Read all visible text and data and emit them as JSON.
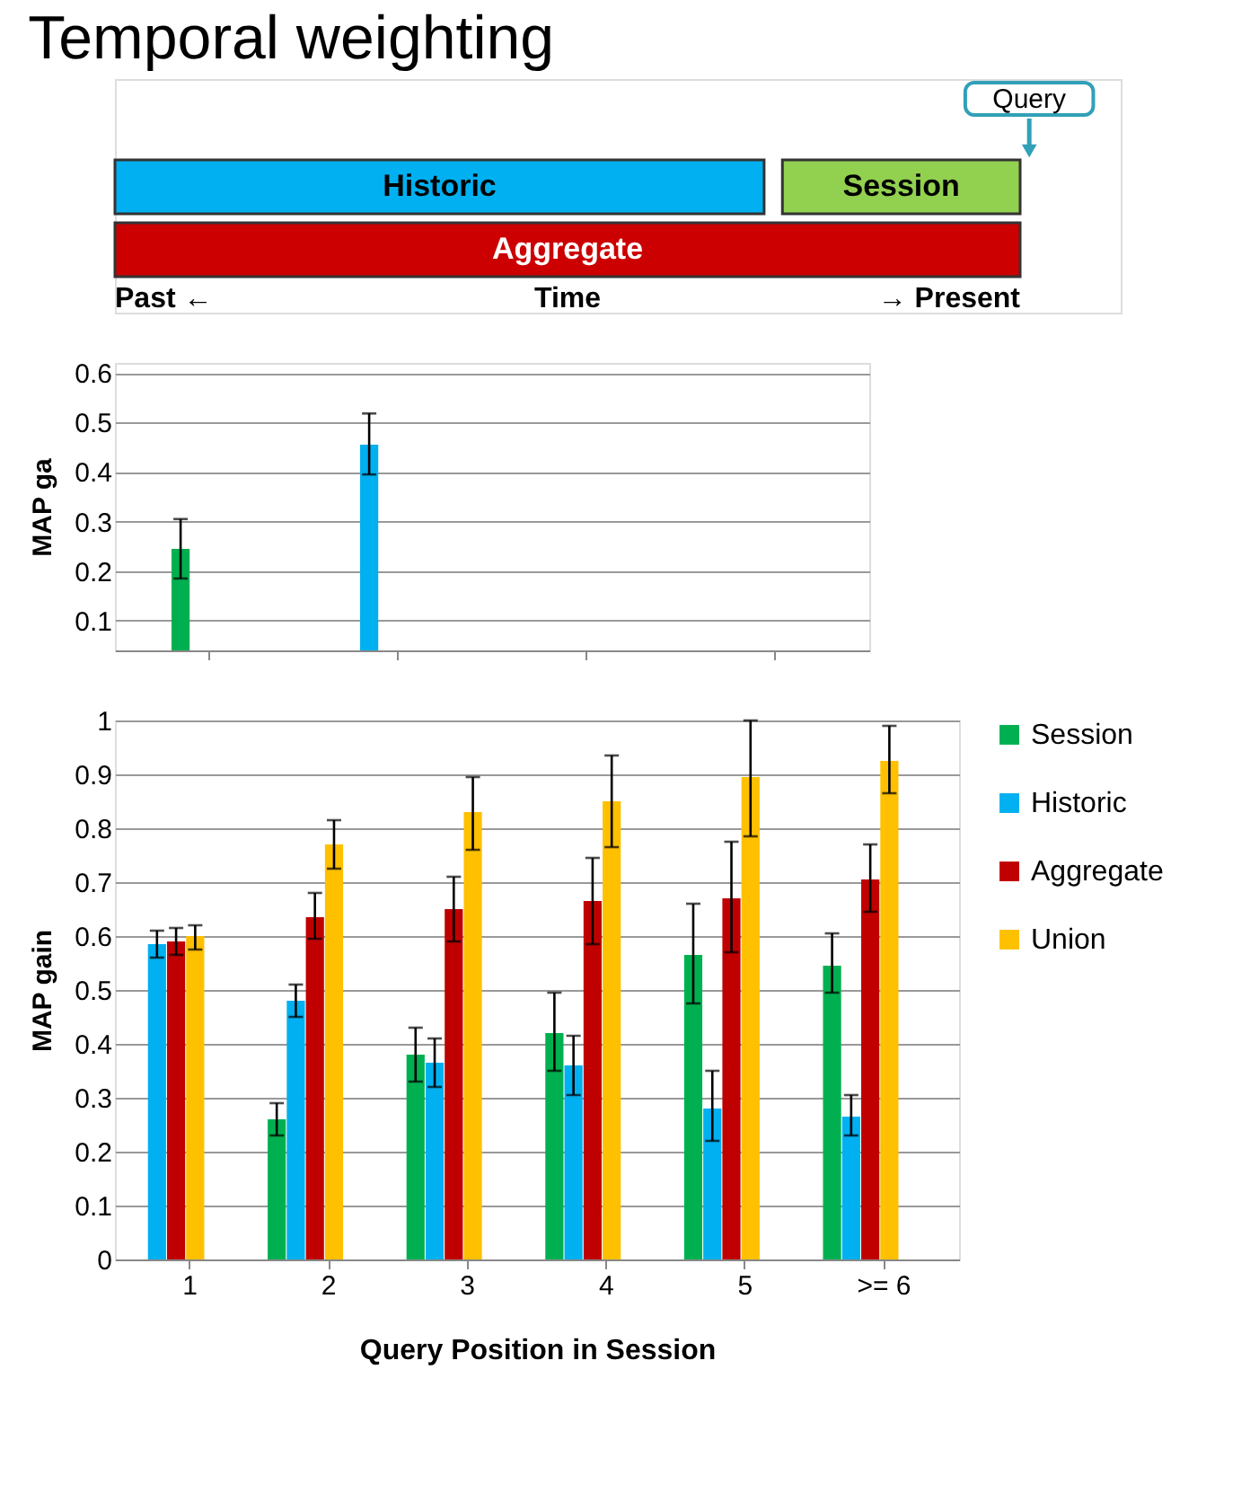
{
  "chart_data": [
    {
      "type": "other",
      "title": "Temporal weighting",
      "annotations": [
        "Query",
        "Historic",
        "Session",
        "Aggregate",
        "Past ←",
        "Time",
        "→ Present"
      ],
      "colors": [
        "#00b0f0",
        "#92d050",
        "#cc0000"
      ]
    },
    {
      "type": "bar",
      "ylabel": "MAP ga",
      "categories": [
        null,
        null,
        null,
        null
      ],
      "values": [
        0.245,
        0.455,
        null,
        null
      ],
      "errors": [
        [
          0.185,
          0.305
        ],
        [
          0.395,
          0.518
        ],
        null,
        null
      ],
      "colors": [
        "#00b050",
        "#00b0f0",
        "#c00000",
        "#ffc000"
      ],
      "ylim": [
        0.04,
        0.62
      ],
      "yticks": [
        0.1,
        0.2,
        0.3,
        0.4,
        0.5,
        0.6
      ],
      "grid": "y",
      "tick_labels": "y"
    },
    {
      "type": "bar",
      "xlabel": "Query Position in Session",
      "ylabel": "MAP  gain",
      "categories": [
        "1",
        "2",
        "3",
        "4",
        "5",
        ">= 6"
      ],
      "series": [
        {
          "name": "Session",
          "color": "#00b050",
          "values": [
            null,
            0.26,
            0.38,
            0.42,
            0.565,
            0.545
          ],
          "errors": [
            null,
            [
              0.23,
              0.29
            ],
            [
              0.33,
              0.43
            ],
            [
              0.35,
              0.495
            ],
            [
              0.475,
              0.66
            ],
            [
              0.495,
              0.605
            ]
          ]
        },
        {
          "name": "Historic",
          "color": "#00b0f0",
          "values": [
            0.585,
            0.48,
            0.365,
            0.36,
            0.28,
            0.265
          ],
          "errors": [
            [
              0.56,
              0.61
            ],
            [
              0.45,
              0.51
            ],
            [
              0.32,
              0.41
            ],
            [
              0.305,
              0.415
            ],
            [
              0.22,
              0.35
            ],
            [
              0.23,
              0.305
            ]
          ]
        },
        {
          "name": "Aggregate",
          "color": "#c00000",
          "values": [
            0.59,
            0.635,
            0.65,
            0.665,
            0.67,
            0.705
          ],
          "errors": [
            [
              0.565,
              0.615
            ],
            [
              0.595,
              0.68
            ],
            [
              0.59,
              0.71
            ],
            [
              0.585,
              0.745
            ],
            [
              0.57,
              0.775
            ],
            [
              0.645,
              0.77
            ]
          ]
        },
        {
          "name": "Union",
          "color": "#ffc000",
          "values": [
            0.6,
            0.77,
            0.83,
            0.85,
            0.895,
            0.925
          ],
          "errors": [
            [
              0.575,
              0.62
            ],
            [
              0.725,
              0.815
            ],
            [
              0.76,
              0.895
            ],
            [
              0.765,
              0.935
            ],
            [
              0.785,
              1.0
            ],
            [
              0.865,
              0.99
            ]
          ]
        }
      ],
      "ylim": [
        0,
        1
      ],
      "yticks": [
        0,
        0.1,
        0.2,
        0.3,
        0.4,
        0.5,
        0.6,
        0.7,
        0.8,
        0.9,
        1
      ],
      "grid": "y",
      "legend": "right"
    }
  ]
}
